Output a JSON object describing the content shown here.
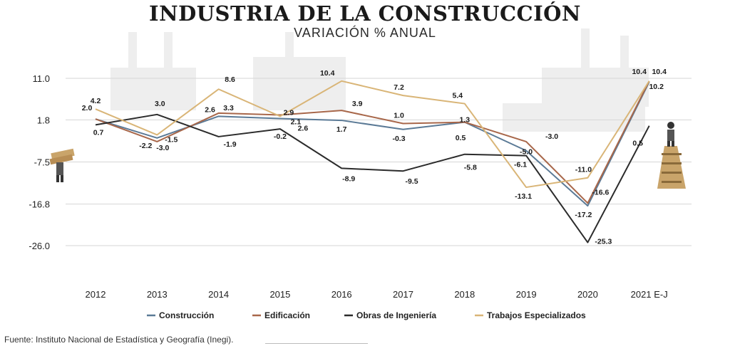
{
  "title": "INDUSTRIA DE LA CONSTRUCCIÓN",
  "subtitle": "VARIACIÓN % ANUAL",
  "source": "Fuente: Instituto Nacional de Estadística y Geografía (Inegi).",
  "chart_data": {
    "type": "line",
    "title": "INDUSTRIA DE LA CONSTRUCCIÓN",
    "subtitle": "VARIACIÓN % ANUAL",
    "xlabel": "",
    "ylabel": "",
    "categories": [
      "2012",
      "2013",
      "2014",
      "2015",
      "2016",
      "2017",
      "2018",
      "2019",
      "2020",
      "2021 E-J"
    ],
    "yticks": [
      "11.0",
      "1.8",
      "-7.5",
      "-16.8",
      "-26.0"
    ],
    "ylim": [
      -26.0,
      11.0
    ],
    "grid": true,
    "legend_position": "bottom",
    "series": [
      {
        "name": "Construcción",
        "color": "#5b7a96",
        "values": [
          2.0,
          -2.2,
          2.6,
          2.1,
          1.7,
          -0.3,
          1.3,
          -5.0,
          -17.2,
          10.2
        ],
        "labels": [
          "2.0",
          "-2.2",
          "2.6",
          "2.1",
          "1.7",
          "-0.3",
          "1.3",
          "-5.0",
          "-17.2",
          "10.2"
        ]
      },
      {
        "name": "Edificación",
        "color": "#a8674a",
        "values": [
          2.0,
          -3.0,
          3.3,
          2.9,
          3.9,
          1.0,
          1.3,
          -3.0,
          -16.6,
          10.4
        ],
        "labels": [
          "",
          "-3.0",
          "3.3",
          "2.9",
          "3.9",
          "1.0",
          "",
          "-3.0",
          "-16.6",
          "10.4"
        ]
      },
      {
        "name": "Obras de Ingeniería",
        "color": "#2b2b2b",
        "values": [
          0.7,
          3.0,
          -1.9,
          -0.2,
          -8.9,
          -9.5,
          -5.8,
          -6.1,
          -25.3,
          0.5
        ],
        "labels": [
          "0.7",
          "3.0",
          "-1.9",
          "-0.2",
          "-8.9",
          "-9.5",
          "-5.8",
          "-6.1",
          "-25.3",
          "0.5"
        ]
      },
      {
        "name": "Trabajos Especializados",
        "color": "#d9b577",
        "values": [
          4.2,
          -1.5,
          8.6,
          2.6,
          10.4,
          7.2,
          5.4,
          -13.1,
          -11.0,
          10.4
        ],
        "labels": [
          "4.2",
          "-1.5",
          "8.6",
          "2.6",
          "10.4",
          "7.2",
          "5.4",
          "-13.1",
          "-11.0",
          "10.4"
        ]
      }
    ],
    "annotations": [
      "0.5"
    ]
  }
}
